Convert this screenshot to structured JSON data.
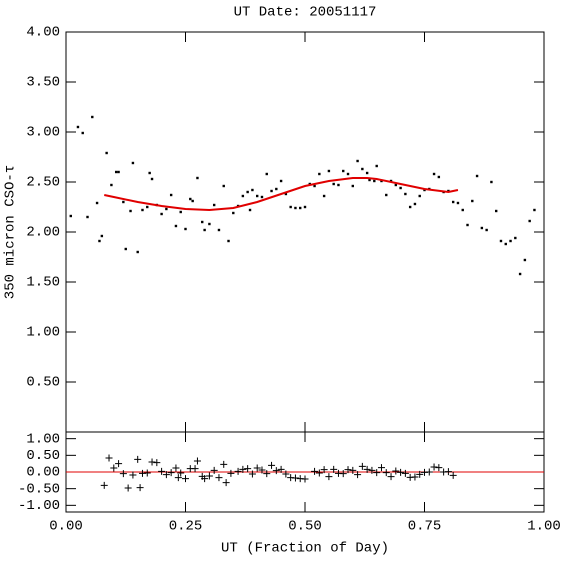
{
  "chart_data": [
    {
      "type": "scatter",
      "title": "UT Date: 20051117",
      "y_label": "350 micron CSO-τ",
      "xlim": [
        0,
        1
      ],
      "ylim": [
        0,
        4
      ],
      "yticks": [
        {
          "value": 0.5,
          "label": "0.50"
        },
        {
          "value": 1,
          "label": "1.00"
        },
        {
          "value": 1.5,
          "label": "1.50"
        },
        {
          "value": 2,
          "label": "2.00"
        },
        {
          "value": 2.5,
          "label": "2.50"
        },
        {
          "value": 3,
          "label": "3.00"
        },
        {
          "value": 3.5,
          "label": "3.50"
        },
        {
          "value": 4,
          "label": "4.00"
        }
      ],
      "series": [
        {
          "marker": "dot",
          "color": "#000000",
          "x": [
            0.01,
            0.025,
            0.035,
            0.045,
            0.055,
            0.065,
            0.07,
            0.075,
            0.085,
            0.095,
            0.105,
            0.11,
            0.12,
            0.125,
            0.135,
            0.14,
            0.15,
            0.16,
            0.17,
            0.175,
            0.18,
            0.19,
            0.2,
            0.21,
            0.22,
            0.23,
            0.24,
            0.25,
            0.26,
            0.265,
            0.275,
            0.285,
            0.29,
            0.3,
            0.31,
            0.32,
            0.33,
            0.34,
            0.35,
            0.36,
            0.37,
            0.38,
            0.385,
            0.39,
            0.4,
            0.41,
            0.42,
            0.43,
            0.44,
            0.45,
            0.46,
            0.47,
            0.48,
            0.49,
            0.5,
            0.51,
            0.52,
            0.53,
            0.54,
            0.55,
            0.56,
            0.57,
            0.58,
            0.59,
            0.6,
            0.61,
            0.62,
            0.63,
            0.635,
            0.645,
            0.65,
            0.66,
            0.67,
            0.68,
            0.69,
            0.7,
            0.71,
            0.72,
            0.73,
            0.74,
            0.75,
            0.76,
            0.77,
            0.78,
            0.79,
            0.8,
            0.81,
            0.82,
            0.83,
            0.84,
            0.85,
            0.86,
            0.87,
            0.88,
            0.89,
            0.9,
            0.91,
            0.92,
            0.93,
            0.94,
            0.95,
            0.96,
            0.97,
            0.98
          ],
          "values": [
            2.16,
            3.05,
            2.99,
            2.15,
            3.15,
            2.29,
            1.91,
            1.96,
            2.79,
            2.47,
            2.6,
            2.6,
            2.3,
            1.83,
            2.21,
            2.69,
            1.8,
            2.22,
            2.25,
            2.59,
            2.53,
            2.27,
            2.18,
            2.23,
            2.37,
            2.06,
            2.2,
            2.03,
            2.33,
            2.31,
            2.54,
            2.1,
            2.02,
            2.08,
            2.27,
            2.02,
            2.46,
            1.91,
            2.19,
            2.26,
            2.36,
            2.4,
            2.22,
            2.42,
            2.36,
            2.35,
            2.58,
            2.41,
            2.43,
            2.51,
            2.38,
            2.25,
            2.24,
            2.24,
            2.25,
            2.48,
            2.46,
            2.58,
            2.36,
            2.61,
            2.48,
            2.47,
            2.61,
            2.58,
            2.46,
            2.71,
            2.63,
            2.59,
            2.52,
            2.51,
            2.66,
            2.51,
            2.37,
            2.51,
            2.47,
            2.44,
            2.38,
            2.25,
            2.28,
            2.36,
            2.42,
            2.43,
            2.58,
            2.55,
            2.4,
            2.41,
            2.3,
            2.29,
            2.22,
            2.07,
            2.31,
            2.56,
            2.04,
            2.02,
            2.5,
            2.21,
            1.91,
            1.88,
            1.91,
            1.94,
            1.58,
            1.72,
            2.11,
            2.22
          ]
        },
        {
          "marker": "line",
          "color": "#e00000",
          "x": [
            0.08,
            0.1,
            0.15,
            0.2,
            0.25,
            0.3,
            0.35,
            0.4,
            0.45,
            0.5,
            0.55,
            0.6,
            0.63,
            0.65,
            0.7,
            0.75,
            0.8,
            0.82
          ],
          "values": [
            2.37,
            2.35,
            2.3,
            2.26,
            2.23,
            2.22,
            2.24,
            2.3,
            2.38,
            2.46,
            2.51,
            2.54,
            2.54,
            2.53,
            2.48,
            2.43,
            2.4,
            2.42
          ]
        }
      ]
    },
    {
      "type": "scatter",
      "x_label": "UT (Fraction of Day)",
      "xlim": [
        0,
        1
      ],
      "ylim": [
        -1.2,
        1.2
      ],
      "xticks": [
        {
          "value": 0,
          "label": "0.00"
        },
        {
          "value": 0.25,
          "label": "0.25"
        },
        {
          "value": 0.5,
          "label": "0.50"
        },
        {
          "value": 0.75,
          "label": "0.75"
        },
        {
          "value": 1,
          "label": "1.00"
        }
      ],
      "yticks": [
        {
          "value": -1,
          "label": "-1.00"
        },
        {
          "value": -0.5,
          "label": "-0.50"
        },
        {
          "value": 0,
          "label": "0.00"
        },
        {
          "value": 0.5,
          "label": "0.50"
        },
        {
          "value": 1,
          "label": "1.00"
        }
      ],
      "hline": 0,
      "hline_color": "#e00000",
      "series": [
        {
          "marker": "plus",
          "color": "#000000",
          "x": [
            0.08,
            0.09,
            0.1,
            0.11,
            0.12,
            0.13,
            0.14,
            0.15,
            0.155,
            0.16,
            0.17,
            0.18,
            0.19,
            0.2,
            0.21,
            0.22,
            0.23,
            0.235,
            0.24,
            0.25,
            0.26,
            0.27,
            0.275,
            0.285,
            0.29,
            0.3,
            0.31,
            0.32,
            0.33,
            0.335,
            0.345,
            0.36,
            0.37,
            0.38,
            0.39,
            0.4,
            0.41,
            0.42,
            0.43,
            0.44,
            0.45,
            0.46,
            0.47,
            0.48,
            0.49,
            0.5,
            0.52,
            0.53,
            0.54,
            0.55,
            0.56,
            0.57,
            0.58,
            0.59,
            0.6,
            0.61,
            0.62,
            0.63,
            0.64,
            0.65,
            0.66,
            0.67,
            0.68,
            0.69,
            0.7,
            0.71,
            0.72,
            0.73,
            0.74,
            0.75,
            0.76,
            0.77,
            0.78,
            0.79,
            0.8,
            0.81
          ],
          "values": [
            -0.4,
            0.42,
            0.12,
            0.25,
            -0.05,
            -0.48,
            -0.09,
            0.38,
            -0.47,
            -0.04,
            -0.03,
            0.3,
            0.28,
            0.02,
            -0.08,
            -0.02,
            0.12,
            -0.17,
            -0.03,
            -0.2,
            0.1,
            0.1,
            0.33,
            -0.13,
            -0.2,
            -0.12,
            0.05,
            -0.17,
            0.23,
            -0.32,
            -0.04,
            0.02,
            0.08,
            0.1,
            -0.06,
            0.12,
            0.06,
            -0.05,
            0.2,
            0.04,
            0.08,
            -0.06,
            -0.17,
            -0.18,
            -0.2,
            -0.21,
            0.02,
            -0.03,
            0.07,
            -0.14,
            0.08,
            -0.04,
            -0.05,
            0.07,
            0.05,
            -0.08,
            0.17,
            0.08,
            0.05,
            -0.02,
            0.13,
            -0.02,
            -0.14,
            0.03,
            -0.01,
            -0.04,
            -0.16,
            -0.15,
            -0.07,
            -0.01,
            0,
            0.15,
            0.13,
            0,
            0.01,
            -0.1
          ]
        }
      ]
    }
  ]
}
